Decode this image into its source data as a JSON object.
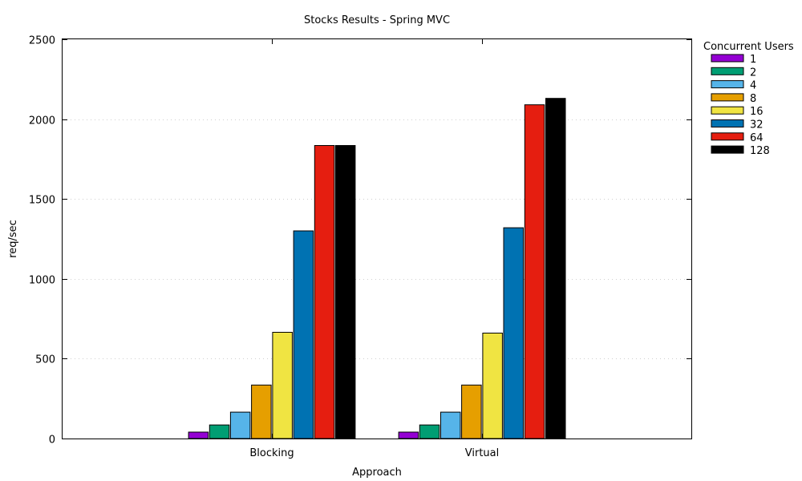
{
  "chart_data": {
    "type": "bar",
    "title": "Stocks Results - Spring MVC",
    "xlabel": "Approach",
    "ylabel": "req/sec",
    "ylim": [
      0,
      2500
    ],
    "yticks": [
      0,
      500,
      1000,
      1500,
      2000,
      2500
    ],
    "grid": true,
    "legend_title": "Concurrent Users",
    "legend_position": "top-right-outside",
    "categories": [
      "Blocking",
      "Virtual"
    ],
    "series": [
      {
        "name": "1",
        "color": "#9400d3",
        "values": [
          40,
          40
        ]
      },
      {
        "name": "2",
        "color": "#009e73",
        "values": [
          85,
          85
        ]
      },
      {
        "name": "4",
        "color": "#56b4e9",
        "values": [
          165,
          165
        ]
      },
      {
        "name": "8",
        "color": "#e69f00",
        "values": [
          335,
          335
        ]
      },
      {
        "name": "16",
        "color": "#f0e442",
        "values": [
          665,
          660
        ]
      },
      {
        "name": "32",
        "color": "#0072b2",
        "values": [
          1300,
          1320
        ]
      },
      {
        "name": "64",
        "color": "#e51e10",
        "values": [
          1835,
          2090
        ]
      },
      {
        "name": "128",
        "color": "#000000",
        "values": [
          1835,
          2130
        ]
      }
    ]
  }
}
